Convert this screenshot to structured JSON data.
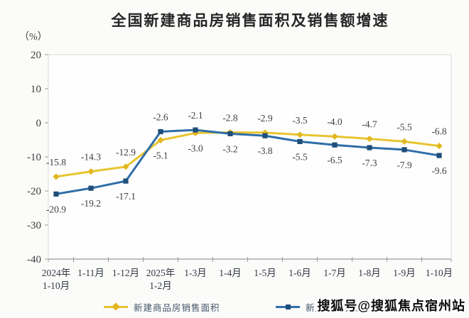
{
  "page": {
    "watermark": "搜狐号@搜狐焦点宿州站"
  },
  "chart_data": {
    "type": "line",
    "title": "全国新建商品房销售面积及销售额增速",
    "unit_label": "（%）",
    "categories": [
      [
        "2024年",
        "1-10月"
      ],
      [
        "1-11月"
      ],
      [
        "1-12月"
      ],
      [
        "2025年",
        "1-2月"
      ],
      [
        "1-3月"
      ],
      [
        "1-4月"
      ],
      [
        "1-5月"
      ],
      [
        "1-6月"
      ],
      [
        "1-7月"
      ],
      [
        "1-8月"
      ],
      [
        "1-9月"
      ],
      [
        "1-10月"
      ]
    ],
    "series": [
      {
        "name": "新建商品房销售面积",
        "marker": "diamond",
        "line_color": "#E8C530",
        "marker_color": "#E2B71F",
        "values": [
          -15.8,
          -14.3,
          -12.9,
          -5.1,
          -3.0,
          -2.8,
          -2.9,
          -3.5,
          -4.0,
          -4.7,
          -5.5,
          -6.8
        ]
      },
      {
        "name": "新建商品房销售额",
        "marker": "square",
        "line_color": "#2E6DA8",
        "marker_color": "#1F4E79",
        "values": [
          -20.9,
          -19.2,
          -17.1,
          -2.6,
          -2.1,
          -3.2,
          -3.8,
          -5.5,
          -6.5,
          -7.3,
          -7.9,
          -9.6
        ]
      }
    ],
    "y_axis": {
      "min": -40,
      "max": 20,
      "step": 10,
      "tick_labels": [
        "20",
        "10",
        "0",
        "-10",
        "-20",
        "-30",
        "-40"
      ]
    },
    "grid": false,
    "data_labels": true,
    "legend_position": "bottom"
  }
}
